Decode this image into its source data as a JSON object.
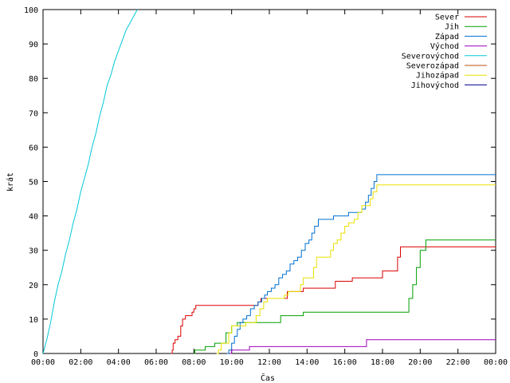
{
  "chart_data": {
    "type": "line",
    "title": "",
    "xlabel": "Čas",
    "ylabel": "krát",
    "xlim": [
      0,
      24
    ],
    "ylim": [
      0,
      100
    ],
    "yticks": [
      0,
      10,
      20,
      30,
      40,
      50,
      60,
      70,
      80,
      90,
      100
    ],
    "xticks": [
      {
        "v": 0,
        "label": "00:00"
      },
      {
        "v": 2,
        "label": "02:00"
      },
      {
        "v": 4,
        "label": "04:00"
      },
      {
        "v": 6,
        "label": "06:00"
      },
      {
        "v": 8,
        "label": "08:00"
      },
      {
        "v": 10,
        "label": "10:00"
      },
      {
        "v": 12,
        "label": "12:00"
      },
      {
        "v": 14,
        "label": "14:00"
      },
      {
        "v": 16,
        "label": "16:00"
      },
      {
        "v": 18,
        "label": "18:00"
      },
      {
        "v": 20,
        "label": "20:00"
      },
      {
        "v": 22,
        "label": "22:00"
      },
      {
        "v": 24,
        "label": "00:00"
      }
    ],
    "grid": false,
    "legend_position": "top-right",
    "series": [
      {
        "name": "Sever",
        "color": "#dd0000",
        "step": true,
        "points": [
          [
            6.8,
            0
          ],
          [
            6.85,
            1
          ],
          [
            6.9,
            3
          ],
          [
            7.0,
            4
          ],
          [
            7.15,
            5
          ],
          [
            7.3,
            8
          ],
          [
            7.4,
            10
          ],
          [
            7.55,
            11
          ],
          [
            7.9,
            12
          ],
          [
            8.0,
            13
          ],
          [
            8.1,
            14
          ],
          [
            11.2,
            14
          ],
          [
            11.4,
            15
          ],
          [
            11.55,
            16
          ],
          [
            12.5,
            16
          ],
          [
            12.95,
            18
          ],
          [
            13.6,
            18
          ],
          [
            13.8,
            19
          ],
          [
            15.3,
            19
          ],
          [
            15.5,
            21
          ],
          [
            16.3,
            21
          ],
          [
            16.4,
            22
          ],
          [
            17.8,
            22
          ],
          [
            18.0,
            24
          ],
          [
            18.6,
            24
          ],
          [
            18.8,
            28
          ],
          [
            18.95,
            31
          ],
          [
            24,
            31
          ]
        ]
      },
      {
        "name": "Jih",
        "color": "#00a000",
        "step": true,
        "points": [
          [
            8.0,
            0
          ],
          [
            8.05,
            1
          ],
          [
            8.5,
            1
          ],
          [
            8.6,
            2
          ],
          [
            9.0,
            2
          ],
          [
            9.1,
            3
          ],
          [
            9.6,
            3
          ],
          [
            9.7,
            6
          ],
          [
            10.0,
            8
          ],
          [
            10.3,
            9
          ],
          [
            12.4,
            9
          ],
          [
            12.6,
            11
          ],
          [
            13.6,
            11
          ],
          [
            13.8,
            12
          ],
          [
            19.2,
            12
          ],
          [
            19.4,
            16
          ],
          [
            19.6,
            20
          ],
          [
            19.8,
            25
          ],
          [
            20.0,
            30
          ],
          [
            20.3,
            33
          ],
          [
            24,
            33
          ]
        ]
      },
      {
        "name": "Západ",
        "color": "#0070d0",
        "step": true,
        "points": [
          [
            9.75,
            0
          ],
          [
            9.85,
            1
          ],
          [
            10.0,
            3
          ],
          [
            10.15,
            5
          ],
          [
            10.3,
            7
          ],
          [
            10.45,
            9
          ],
          [
            10.6,
            10
          ],
          [
            10.8,
            11
          ],
          [
            11.0,
            13
          ],
          [
            11.2,
            14
          ],
          [
            11.4,
            15
          ],
          [
            11.6,
            16
          ],
          [
            11.75,
            17
          ],
          [
            11.9,
            18
          ],
          [
            12.1,
            19
          ],
          [
            12.3,
            20
          ],
          [
            12.5,
            22
          ],
          [
            12.7,
            23
          ],
          [
            12.9,
            24
          ],
          [
            13.1,
            26
          ],
          [
            13.3,
            27
          ],
          [
            13.5,
            28
          ],
          [
            13.7,
            30
          ],
          [
            13.9,
            32
          ],
          [
            14.1,
            33
          ],
          [
            14.25,
            35
          ],
          [
            14.4,
            37
          ],
          [
            14.6,
            39
          ],
          [
            15.2,
            39
          ],
          [
            15.4,
            40
          ],
          [
            16.0,
            40
          ],
          [
            16.2,
            41
          ],
          [
            16.7,
            41
          ],
          [
            16.9,
            42
          ],
          [
            17.1,
            44
          ],
          [
            17.25,
            46
          ],
          [
            17.4,
            48
          ],
          [
            17.55,
            50
          ],
          [
            17.7,
            52
          ],
          [
            24,
            52
          ]
        ]
      },
      {
        "name": "Východ",
        "color": "#a000c0",
        "step": true,
        "points": [
          [
            9.9,
            0
          ],
          [
            10.0,
            1
          ],
          [
            10.8,
            1
          ],
          [
            10.95,
            2
          ],
          [
            17.05,
            2
          ],
          [
            17.15,
            4
          ],
          [
            24,
            4
          ]
        ]
      },
      {
        "name": "Severovýchod",
        "color": "#00c8d8",
        "step": false,
        "points": [
          [
            0,
            0
          ],
          [
            0.2,
            4
          ],
          [
            0.4,
            9
          ],
          [
            0.6,
            15
          ],
          [
            0.8,
            20
          ],
          [
            1.0,
            24
          ],
          [
            1.2,
            29
          ],
          [
            1.4,
            33
          ],
          [
            1.6,
            38
          ],
          [
            1.8,
            42
          ],
          [
            2.0,
            47
          ],
          [
            2.2,
            51
          ],
          [
            2.4,
            55
          ],
          [
            2.6,
            60
          ],
          [
            2.8,
            64
          ],
          [
            3.0,
            69
          ],
          [
            3.2,
            73
          ],
          [
            3.4,
            78
          ],
          [
            3.6,
            81
          ],
          [
            3.8,
            85
          ],
          [
            4.0,
            88
          ],
          [
            4.2,
            91
          ],
          [
            4.4,
            94
          ],
          [
            4.6,
            96
          ],
          [
            4.8,
            98
          ],
          [
            5.0,
            100
          ]
        ]
      },
      {
        "name": "Severozápad",
        "color": "#b85010",
        "step": true,
        "points": [
          [
            9.9,
            0
          ]
        ]
      },
      {
        "name": "Jihozápad",
        "color": "#e8e000",
        "step": true,
        "points": [
          [
            9.2,
            0
          ],
          [
            9.3,
            1
          ],
          [
            9.45,
            3
          ],
          [
            9.7,
            3
          ],
          [
            9.85,
            6
          ],
          [
            10.0,
            8
          ],
          [
            10.6,
            8
          ],
          [
            10.75,
            9
          ],
          [
            11.1,
            9
          ],
          [
            11.3,
            11
          ],
          [
            11.5,
            13
          ],
          [
            11.7,
            15
          ],
          [
            11.9,
            16
          ],
          [
            12.6,
            16
          ],
          [
            12.8,
            17
          ],
          [
            13.0,
            18
          ],
          [
            13.5,
            18
          ],
          [
            13.65,
            20
          ],
          [
            13.8,
            22
          ],
          [
            14.2,
            22
          ],
          [
            14.35,
            25
          ],
          [
            14.5,
            28
          ],
          [
            15.1,
            28
          ],
          [
            15.25,
            30
          ],
          [
            15.4,
            32
          ],
          [
            15.6,
            33
          ],
          [
            15.8,
            35
          ],
          [
            16.0,
            37
          ],
          [
            16.2,
            38
          ],
          [
            16.5,
            39
          ],
          [
            16.7,
            41
          ],
          [
            16.9,
            43
          ],
          [
            17.2,
            43
          ],
          [
            17.35,
            45
          ],
          [
            17.5,
            47
          ],
          [
            17.7,
            49
          ],
          [
            24,
            49
          ]
        ]
      },
      {
        "name": "Jihovýchod",
        "color": "#000090",
        "step": true,
        "points": []
      }
    ]
  }
}
